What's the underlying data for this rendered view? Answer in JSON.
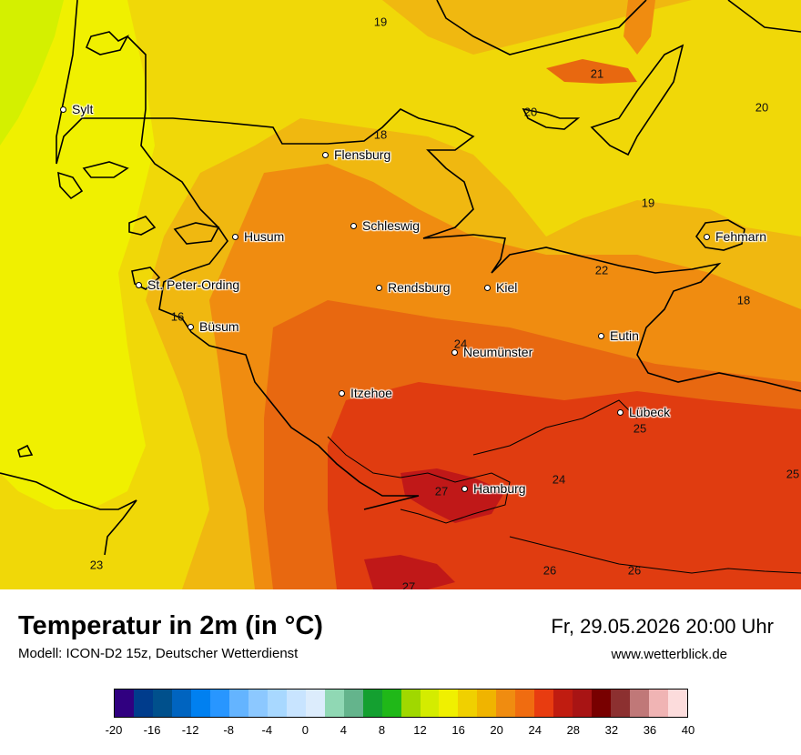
{
  "map": {
    "title": "Temperatur in 2m (in °C)",
    "model": "Modell: ICON-D2 15z, Deutscher Wetterdienst",
    "datetime": "Fr, 29.05.2026 20:00 Uhr",
    "website": "www.wetterblick.de",
    "cities": [
      {
        "name": "Sylt"
      },
      {
        "name": "Flensburg"
      },
      {
        "name": "Husum"
      },
      {
        "name": "Schleswig"
      },
      {
        "name": "Fehmarn"
      },
      {
        "name": "St. Peter-Ording"
      },
      {
        "name": "Rendsburg"
      },
      {
        "name": "Kiel"
      },
      {
        "name": "Büsum"
      },
      {
        "name": "Eutin"
      },
      {
        "name": "Neumünster"
      },
      {
        "name": "Itzehoe"
      },
      {
        "name": "Lübeck"
      },
      {
        "name": "Hamburg"
      }
    ],
    "iso_labels": [
      "19",
      "21",
      "20",
      "20",
      "18",
      "19",
      "22",
      "18",
      "16",
      "24",
      "25",
      "25",
      "24",
      "27",
      "23",
      "26",
      "26",
      "27"
    ],
    "colors": {
      "cold_sea": "#d4f000",
      "land_16": "#f0f000",
      "land_18": "#f0d808",
      "land_20": "#f0b810",
      "land_22": "#f08c10",
      "land_24": "#e86810",
      "land_26": "#e03c10",
      "land_28": "#c01818"
    }
  },
  "legend": {
    "colors": [
      "#300080",
      "#003c8c",
      "#00508c",
      "#0064c0",
      "#0080f0",
      "#2896ff",
      "#64b4ff",
      "#8cc8ff",
      "#a8d8ff",
      "#c8e4ff",
      "#dcecfc",
      "#90d8b4",
      "#64b48c",
      "#14a030",
      "#20b818",
      "#a0d800",
      "#d4ec00",
      "#f0f000",
      "#f0d000",
      "#f0b400",
      "#f08c10",
      "#f06c10",
      "#e83c10",
      "#c01c10",
      "#a81414",
      "#780000",
      "#8c3030",
      "#c07878",
      "#f0b4b4",
      "#fcdcdc"
    ],
    "ticks": [
      "-20",
      "-16",
      "-12",
      "-8",
      "-4",
      "0",
      "4",
      "8",
      "12",
      "16",
      "20",
      "24",
      "28",
      "32",
      "36",
      "40"
    ]
  }
}
